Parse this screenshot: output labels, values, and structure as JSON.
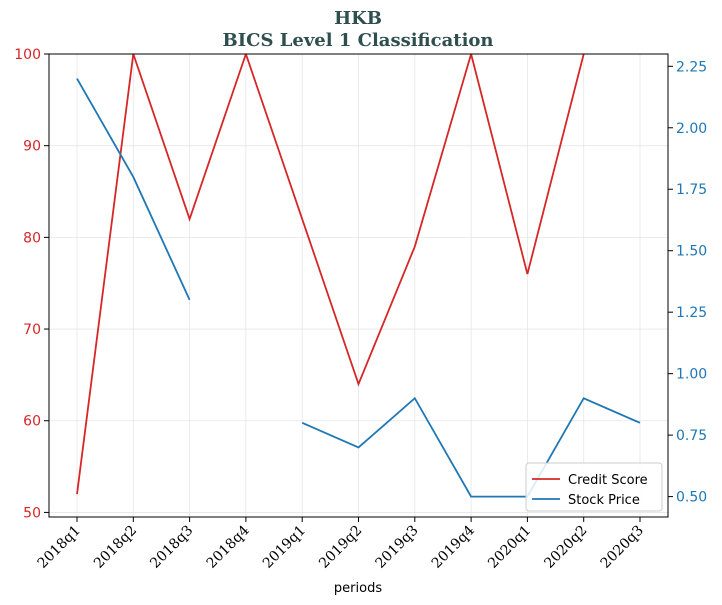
{
  "chart_data": {
    "type": "line",
    "title": "HKB",
    "subtitle": "BICS Level 1 Classification",
    "xlabel": "periods",
    "ylabel": "",
    "ylabel_right": "",
    "categories": [
      "2018q1",
      "2018q2",
      "2018q3",
      "2018q4",
      "2019q1",
      "2019q2",
      "2019q3",
      "2019q4",
      "2020q1",
      "2020q2",
      "2020q3"
    ],
    "ylim": [
      49.5,
      100
    ],
    "ylim_right": [
      0.417,
      2.3
    ],
    "yticks": [
      50,
      60,
      70,
      80,
      90,
      100
    ],
    "yticks_right": [
      0.5,
      0.75,
      1.0,
      1.25,
      1.5,
      1.75,
      2.0,
      2.25
    ],
    "ytick_labels_right": [
      "0.50",
      "0.75",
      "1.00",
      "1.25",
      "1.50",
      "1.75",
      "2.00",
      "2.25"
    ],
    "grid": true,
    "legend_position": "bottom-right",
    "series": [
      {
        "name": "Credit Score",
        "axis": "left",
        "color": "#d62728",
        "values": [
          52,
          100,
          82,
          100,
          82,
          64,
          79,
          100,
          76,
          100,
          null
        ]
      },
      {
        "name": "Stock Price",
        "axis": "right",
        "color": "#1f77b4",
        "values": [
          2.2,
          1.8,
          1.3,
          null,
          0.8,
          0.7,
          0.9,
          0.5,
          0.5,
          0.9,
          0.8
        ]
      }
    ]
  }
}
